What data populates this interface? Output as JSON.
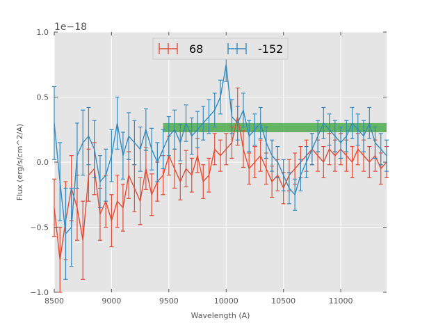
{
  "chart_data": {
    "type": "line",
    "title": "",
    "xlabel": "Wavelength (A)",
    "ylabel": "Flux (erg/s/cm^2/A)",
    "xlim": [
      8500,
      11400
    ],
    "ylim": [
      -1.0,
      1.0
    ],
    "y_offset_label": "1e−18",
    "xticks": [
      8500,
      9000,
      9500,
      10000,
      10500,
      11000
    ],
    "xtick_labels": [
      "8500",
      "9000",
      "9500",
      "10000",
      "10500",
      "11000"
    ],
    "yticks": [
      -1.0,
      -0.5,
      0.0,
      0.5,
      1.0
    ],
    "ytick_labels": [
      "−1.0",
      "−0.5",
      "0.0",
      "0.5",
      "1.0"
    ],
    "grid": true,
    "legend_position": "top-center",
    "band": {
      "x_start": 9450,
      "x_end": 11400,
      "y_low": 0.23,
      "y_high": 0.3,
      "color": "#2ca02c"
    },
    "series": [
      {
        "name": "68",
        "color": "#e24a33",
        "x": [
          8500,
          8550,
          8600,
          8650,
          8700,
          8750,
          8800,
          8850,
          8900,
          8950,
          9000,
          9050,
          9100,
          9150,
          9200,
          9250,
          9300,
          9350,
          9400,
          9450,
          9500,
          9550,
          9600,
          9650,
          9700,
          9750,
          9800,
          9850,
          9900,
          9950,
          10000,
          10050,
          10100,
          10150,
          10200,
          10250,
          10300,
          10350,
          10400,
          10450,
          10500,
          10550,
          10600,
          10650,
          10700,
          10750,
          10800,
          10850,
          10900,
          10950,
          11000,
          11050,
          11100,
          11150,
          11200,
          11250,
          11300,
          11350,
          11400
        ],
        "y": [
          -0.35,
          -0.75,
          -0.45,
          -0.2,
          -0.35,
          -0.6,
          -0.1,
          -0.05,
          -0.4,
          -0.3,
          -0.45,
          -0.3,
          -0.35,
          -0.1,
          -0.2,
          -0.3,
          -0.05,
          -0.25,
          -0.15,
          -0.1,
          0.05,
          -0.05,
          -0.15,
          -0.05,
          -0.1,
          0.05,
          -0.15,
          -0.1,
          0.1,
          0.05,
          0.1,
          0.15,
          0.35,
          0.1,
          -0.05,
          0.0,
          0.05,
          -0.05,
          -0.15,
          -0.1,
          -0.2,
          -0.1,
          -0.05,
          0.0,
          0.05,
          0.1,
          0.05,
          0.0,
          0.1,
          0.05,
          0.1,
          0.05,
          0.0,
          0.1,
          0.05,
          0.0,
          0.05,
          -0.05,
          0.0
        ],
        "err": [
          0.22,
          0.25,
          0.3,
          0.25,
          0.25,
          0.3,
          0.2,
          0.2,
          0.2,
          0.2,
          0.2,
          0.2,
          0.18,
          0.18,
          0.18,
          0.18,
          0.16,
          0.16,
          0.15,
          0.15,
          0.15,
          0.15,
          0.14,
          0.14,
          0.13,
          0.13,
          0.13,
          0.13,
          0.12,
          0.12,
          0.12,
          0.12,
          0.22,
          0.14,
          0.12,
          0.12,
          0.12,
          0.12,
          0.12,
          0.12,
          0.12,
          0.12,
          0.12,
          0.12,
          0.12,
          0.12,
          0.12,
          0.12,
          0.12,
          0.12,
          0.12,
          0.12,
          0.12,
          0.12,
          0.12,
          0.12,
          0.12,
          0.12,
          0.12
        ]
      },
      {
        "name": "-152",
        "color": "#348abd",
        "x": [
          8500,
          8550,
          8600,
          8650,
          8700,
          8750,
          8800,
          8850,
          8900,
          8950,
          9000,
          9050,
          9100,
          9150,
          9200,
          9250,
          9300,
          9350,
          9400,
          9450,
          9500,
          9550,
          9600,
          9650,
          9700,
          9750,
          9800,
          9850,
          9900,
          9950,
          10000,
          10050,
          10100,
          10150,
          10200,
          10250,
          10300,
          10350,
          10400,
          10450,
          10500,
          10550,
          10600,
          10650,
          10700,
          10750,
          10800,
          10850,
          10900,
          10950,
          11000,
          11050,
          11100,
          11150,
          11200,
          11250,
          11300,
          11350,
          11400
        ],
        "y": [
          0.3,
          -0.15,
          -0.55,
          -0.5,
          0.05,
          0.15,
          0.2,
          0.1,
          -0.15,
          -0.1,
          0.05,
          0.3,
          0.05,
          0.2,
          0.15,
          0.1,
          0.25,
          0.1,
          0.0,
          0.1,
          0.2,
          0.25,
          0.15,
          0.3,
          0.2,
          0.25,
          0.3,
          0.35,
          0.4,
          0.5,
          0.75,
          0.35,
          0.3,
          0.4,
          0.2,
          0.25,
          0.3,
          0.15,
          0.05,
          0.0,
          -0.1,
          -0.2,
          -0.25,
          -0.1,
          0.0,
          0.1,
          0.2,
          0.3,
          0.25,
          0.2,
          0.15,
          0.2,
          0.3,
          0.25,
          0.2,
          0.3,
          0.15,
          0.1,
          0.05
        ],
        "err": [
          0.28,
          0.3,
          0.35,
          0.3,
          0.25,
          0.25,
          0.22,
          0.22,
          0.2,
          0.2,
          0.2,
          0.2,
          0.18,
          0.18,
          0.17,
          0.17,
          0.16,
          0.16,
          0.15,
          0.15,
          0.15,
          0.15,
          0.14,
          0.14,
          0.14,
          0.14,
          0.13,
          0.13,
          0.13,
          0.13,
          0.13,
          0.13,
          0.13,
          0.13,
          0.12,
          0.12,
          0.12,
          0.12,
          0.12,
          0.12,
          0.12,
          0.12,
          0.12,
          0.12,
          0.12,
          0.12,
          0.12,
          0.12,
          0.12,
          0.12,
          0.12,
          0.12,
          0.12,
          0.12,
          0.12,
          0.12,
          0.12,
          0.12,
          0.12
        ]
      }
    ]
  }
}
